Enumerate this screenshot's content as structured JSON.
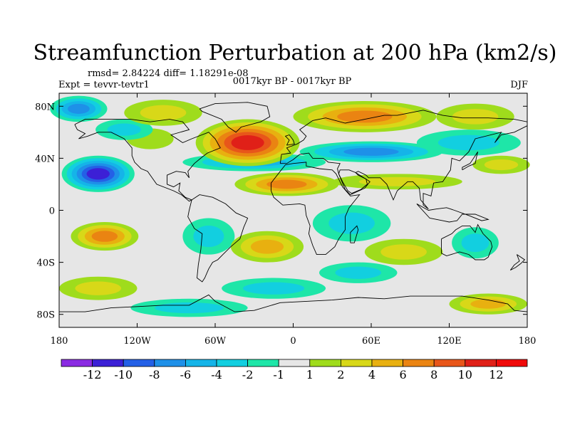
{
  "chart_data": {
    "type": "heatmap",
    "title": "Streamfunction Perturbation at 200 hPa (km2/s)",
    "stats_text": "rmsd= 2.84224 diff= 1.18291e-08",
    "experiment_text": "Expt = tevvr-tevtr1",
    "period_text": "0017kyr BP - 0017kyr BP",
    "season_text": "DJF",
    "units": "km2/s",
    "x_range": [
      -180,
      180
    ],
    "y_range": [
      -90,
      90
    ],
    "x_ticks": [
      {
        "value": -180,
        "label": "180"
      },
      {
        "value": -120,
        "label": "120W"
      },
      {
        "value": -60,
        "label": "60W"
      },
      {
        "value": 0,
        "label": "0"
      },
      {
        "value": 60,
        "label": "60E"
      },
      {
        "value": 120,
        "label": "120E"
      },
      {
        "value": 180,
        "label": "180"
      }
    ],
    "y_ticks": [
      {
        "value": 80,
        "label": "80N"
      },
      {
        "value": 40,
        "label": "40N"
      },
      {
        "value": 0,
        "label": "0"
      },
      {
        "value": -40,
        "label": "40S"
      },
      {
        "value": -80,
        "label": "80S"
      }
    ],
    "colorbar": {
      "labels": [
        "-12",
        "-10",
        "-8",
        "-6",
        "-4",
        "-2",
        "-1",
        "1",
        "2",
        "4",
        "6",
        "8",
        "10",
        "12"
      ],
      "levels": [
        -12,
        -10,
        -8,
        -6,
        -4,
        -2,
        -1,
        1,
        2,
        4,
        6,
        8,
        10,
        12
      ],
      "colors": [
        "#8a2be2",
        "#3c20d6",
        "#2460e6",
        "#1e90e8",
        "#15b4e8",
        "#12cfe0",
        "#1ee6a8",
        "#e6e6e6",
        "#9fdc1c",
        "#d8d818",
        "#e8b010",
        "#ea8412",
        "#e8561a",
        "#e02018",
        "#f00a0a"
      ]
    },
    "features": [
      {
        "name": "north-pacific-high-lat-neg",
        "lon": -165,
        "lat": 78,
        "rlon": 22,
        "rlat": 10,
        "value": -7
      },
      {
        "name": "arctic-canada-pos",
        "lon": -100,
        "lat": 75,
        "rlon": 30,
        "rlat": 10,
        "value": 3.5
      },
      {
        "name": "north-atlantic-pos",
        "lon": -35,
        "lat": 52,
        "rlon": 40,
        "rlat": 18,
        "value": 10
      },
      {
        "name": "eurasia-high-lat-pos",
        "lon": 55,
        "lat": 72,
        "rlon": 55,
        "rlat": 12,
        "value": 6
      },
      {
        "name": "east-siberia-pos",
        "lon": 140,
        "lat": 72,
        "rlon": 30,
        "rlat": 10,
        "value": 3
      },
      {
        "name": "north-pacific-high-lat-neg2",
        "lon": -130,
        "lat": 62,
        "rlon": 22,
        "rlat": 8,
        "value": -3
      },
      {
        "name": "central-asia-neg",
        "lon": 60,
        "lat": 45,
        "rlon": 55,
        "rlat": 8,
        "value": -6
      },
      {
        "name": "atlantic-subtropic-neg",
        "lon": -30,
        "lat": 37,
        "rlon": 55,
        "rlat": 7,
        "value": -5
      },
      {
        "name": "east-asia-neg",
        "lon": 135,
        "lat": 52,
        "rlon": 40,
        "rlat": 10,
        "value": -3
      },
      {
        "name": "north-pacific-subtrop-neg",
        "lon": -150,
        "lat": 28,
        "rlon": 28,
        "rlat": 14,
        "value": -10
      },
      {
        "name": "north-pacific-east-pos",
        "lon": -110,
        "lat": 55,
        "rlon": 18,
        "rlat": 8,
        "value": 1.5
      },
      {
        "name": "sahara-pos",
        "lon": -5,
        "lat": 20,
        "rlon": 40,
        "rlat": 9,
        "value": 6
      },
      {
        "name": "south-asia-pos",
        "lon": 80,
        "lat": 22,
        "rlon": 50,
        "rlat": 6,
        "value": 2.5
      },
      {
        "name": "west-pacific-pos",
        "lon": 160,
        "lat": 35,
        "rlon": 22,
        "rlat": 7,
        "value": 3
      },
      {
        "name": "indian-ocean-neg",
        "lon": 45,
        "lat": -10,
        "rlon": 30,
        "rlat": 14,
        "value": -3
      },
      {
        "name": "south-pacific-pos",
        "lon": -145,
        "lat": -20,
        "rlon": 26,
        "rlat": 11,
        "value": 6
      },
      {
        "name": "south-america-neg",
        "lon": -65,
        "lat": -20,
        "rlon": 20,
        "rlat": 14,
        "value": -2
      },
      {
        "name": "south-atlantic-pos",
        "lon": -20,
        "lat": -28,
        "rlon": 28,
        "rlat": 12,
        "value": 4
      },
      {
        "name": "south-indian-pos",
        "lon": 85,
        "lat": -32,
        "rlon": 30,
        "rlat": 10,
        "value": 3
      },
      {
        "name": "australia-neg",
        "lon": 140,
        "lat": -25,
        "rlon": 18,
        "rlat": 12,
        "value": -3
      },
      {
        "name": "southern-ocean-pacific-pos",
        "lon": -150,
        "lat": -60,
        "rlon": 30,
        "rlat": 9,
        "value": 3.5
      },
      {
        "name": "southern-ocean-atlantic-neg",
        "lon": -15,
        "lat": -60,
        "rlon": 40,
        "rlat": 8,
        "value": -2
      },
      {
        "name": "southern-ocean-indian-neg",
        "lon": 50,
        "lat": -48,
        "rlon": 30,
        "rlat": 8,
        "value": -3
      },
      {
        "name": "antarctica-east-pos",
        "lon": 150,
        "lat": -72,
        "rlon": 30,
        "rlat": 8,
        "value": 4
      },
      {
        "name": "antarctica-west-neg",
        "lon": -80,
        "lat": -75,
        "rlon": 45,
        "rlat": 7,
        "value": -2
      }
    ]
  }
}
